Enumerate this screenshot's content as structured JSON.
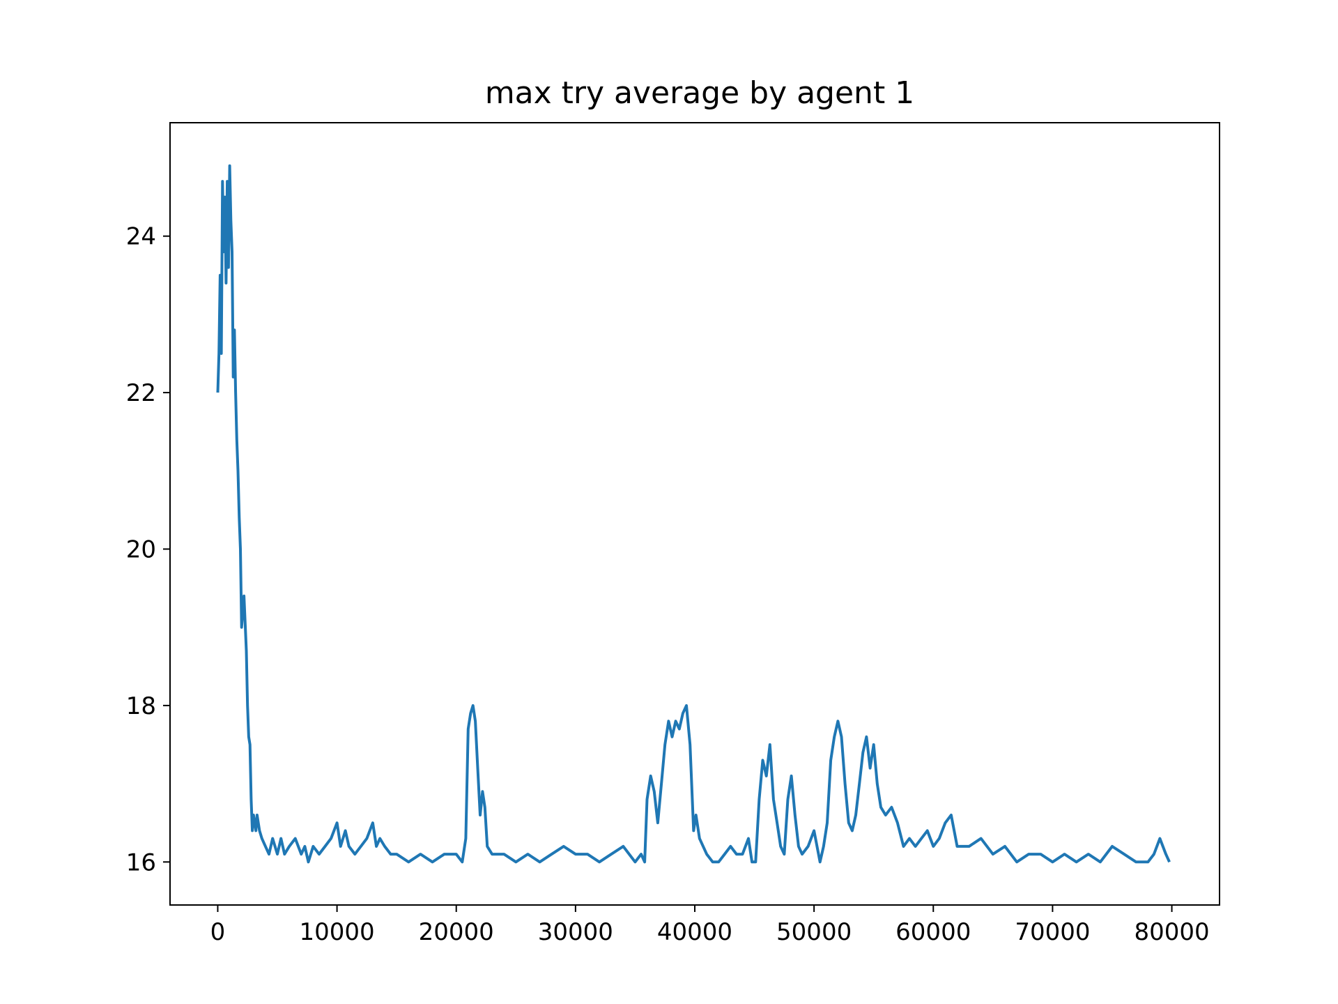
{
  "chart_data": {
    "type": "line",
    "title": "max try average by agent 1",
    "xlabel": "",
    "ylabel": "",
    "xlim": [
      -4000,
      84000
    ],
    "ylim": [
      15.45,
      25.45
    ],
    "grid": false,
    "line_color": "#1f77b4",
    "xticks": [
      0,
      10000,
      20000,
      30000,
      40000,
      50000,
      60000,
      70000,
      80000
    ],
    "xtick_labels": [
      "0",
      "10000",
      "20000",
      "30000",
      "40000",
      "50000",
      "60000",
      "70000",
      "80000"
    ],
    "yticks": [
      16,
      18,
      20,
      22,
      24
    ],
    "ytick_labels": [
      "16",
      "18",
      "20",
      "22",
      "24"
    ],
    "series": [
      {
        "x": [
          0,
          100,
          200,
          300,
          400,
          500,
          600,
          700,
          800,
          900,
          1000,
          1100,
          1200,
          1300,
          1400,
          1500,
          1600,
          1700,
          1800,
          1900,
          2000,
          2200,
          2400,
          2500,
          2600,
          2700,
          2800,
          2900,
          3000,
          3100,
          3200,
          3300,
          3500,
          3700,
          4000,
          4300,
          4600,
          5000,
          5300,
          5600,
          6000,
          6500,
          7000,
          7300,
          7600,
          8000,
          8500,
          9000,
          9500,
          10000,
          10300,
          10700,
          11000,
          11500,
          12000,
          12500,
          13000,
          13300,
          13600,
          14000,
          14500,
          15000,
          16000,
          17000,
          18000,
          19000,
          20000,
          20500,
          20800,
          21000,
          21200,
          21400,
          21600,
          21800,
          22000,
          22200,
          22400,
          22600,
          23000,
          24000,
          25000,
          26000,
          27000,
          28000,
          29000,
          30000,
          31000,
          32000,
          33000,
          34000,
          35000,
          35500,
          35800,
          36000,
          36300,
          36600,
          36900,
          37200,
          37500,
          37800,
          38100,
          38400,
          38700,
          39000,
          39300,
          39600,
          39900,
          40100,
          40400,
          40700,
          41000,
          41500,
          42000,
          42500,
          43000,
          43500,
          44000,
          44500,
          44800,
          45100,
          45400,
          45700,
          46000,
          46300,
          46600,
          46900,
          47200,
          47500,
          47800,
          48100,
          48400,
          48700,
          49000,
          49500,
          50000,
          50500,
          50800,
          51100,
          51400,
          51700,
          52000,
          52300,
          52600,
          52900,
          53200,
          53500,
          53800,
          54100,
          54400,
          54700,
          55000,
          55300,
          55600,
          56000,
          56500,
          57000,
          57500,
          58000,
          58500,
          59000,
          59500,
          60000,
          60500,
          61000,
          61500,
          62000,
          63000,
          64000,
          65000,
          66000,
          67000,
          68000,
          69000,
          70000,
          71000,
          72000,
          73000,
          74000,
          75000,
          76000,
          77000,
          78000,
          78500,
          79000,
          79500,
          79800
        ],
        "y": [
          22.0,
          22.5,
          23.5,
          22.5,
          24.7,
          23.8,
          24.5,
          23.4,
          24.7,
          23.6,
          24.9,
          24.2,
          23.8,
          22.2,
          22.8,
          22.0,
          21.4,
          21.0,
          20.4,
          20.0,
          19.0,
          19.4,
          18.7,
          18.0,
          17.6,
          17.5,
          16.8,
          16.4,
          16.6,
          16.5,
          16.4,
          16.6,
          16.4,
          16.3,
          16.2,
          16.1,
          16.3,
          16.1,
          16.3,
          16.1,
          16.2,
          16.3,
          16.1,
          16.2,
          16.0,
          16.2,
          16.1,
          16.2,
          16.3,
          16.5,
          16.2,
          16.4,
          16.2,
          16.1,
          16.2,
          16.3,
          16.5,
          16.2,
          16.3,
          16.2,
          16.1,
          16.1,
          16.0,
          16.1,
          16.0,
          16.1,
          16.1,
          16.0,
          16.3,
          17.7,
          17.9,
          18.0,
          17.8,
          17.2,
          16.6,
          16.9,
          16.7,
          16.2,
          16.1,
          16.1,
          16.0,
          16.1,
          16.0,
          16.1,
          16.2,
          16.1,
          16.1,
          16.0,
          16.1,
          16.2,
          16.0,
          16.1,
          16.0,
          16.8,
          17.1,
          16.9,
          16.5,
          17.0,
          17.5,
          17.8,
          17.6,
          17.8,
          17.7,
          17.9,
          18.0,
          17.5,
          16.4,
          16.6,
          16.3,
          16.2,
          16.1,
          16.0,
          16.0,
          16.1,
          16.2,
          16.1,
          16.1,
          16.3,
          16.0,
          16.0,
          16.8,
          17.3,
          17.1,
          17.5,
          16.8,
          16.5,
          16.2,
          16.1,
          16.8,
          17.1,
          16.6,
          16.2,
          16.1,
          16.2,
          16.4,
          16.0,
          16.2,
          16.5,
          17.3,
          17.6,
          17.8,
          17.6,
          17.0,
          16.5,
          16.4,
          16.6,
          17.0,
          17.4,
          17.6,
          17.2,
          17.5,
          17.0,
          16.7,
          16.6,
          16.7,
          16.5,
          16.2,
          16.3,
          16.2,
          16.3,
          16.4,
          16.2,
          16.3,
          16.5,
          16.6,
          16.2,
          16.2,
          16.3,
          16.1,
          16.2,
          16.0,
          16.1,
          16.1,
          16.0,
          16.1,
          16.0,
          16.1,
          16.0,
          16.2,
          16.1,
          16.0,
          16.0,
          16.1,
          16.3,
          16.1,
          16.0
        ]
      }
    ]
  }
}
